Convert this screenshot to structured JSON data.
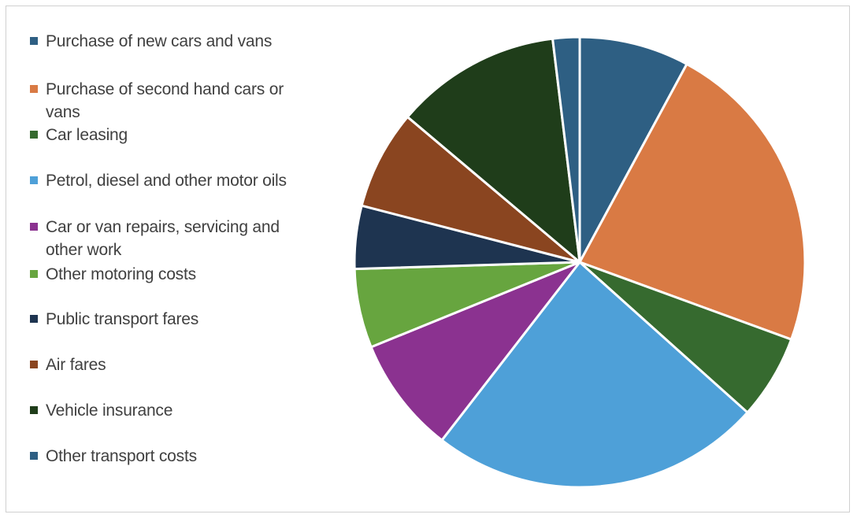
{
  "chart_data": {
    "type": "pie",
    "title": "",
    "legend_position": "left",
    "slices": [
      {
        "label": "Purchase of new cars and vans",
        "value": 8.2,
        "color": "#2e5f83"
      },
      {
        "label": "Purchase of second hand cars or vans",
        "value": 23.6,
        "color": "#d97a44"
      },
      {
        "label": "Car leasing",
        "value": 6.3,
        "color": "#366a2f"
      },
      {
        "label": "Petrol, diesel and other motor oils",
        "value": 24.8,
        "color": "#4ea0d8"
      },
      {
        "label": "Car or van repairs, servicing and other work",
        "value": 8.7,
        "color": "#8b3290"
      },
      {
        "label": "Other motoring costs",
        "value": 5.9,
        "color": "#67a53f"
      },
      {
        "label": "Public transport fares",
        "value": 4.7,
        "color": "#1e3450"
      },
      {
        "label": "Air fares",
        "value": 7.4,
        "color": "#8a4520"
      },
      {
        "label": "Vehicle insurance",
        "value": 12.4,
        "color": "#1f3d1a"
      },
      {
        "label": "Other transport costs",
        "value": 2.0,
        "color": "#2e5f83"
      }
    ]
  }
}
